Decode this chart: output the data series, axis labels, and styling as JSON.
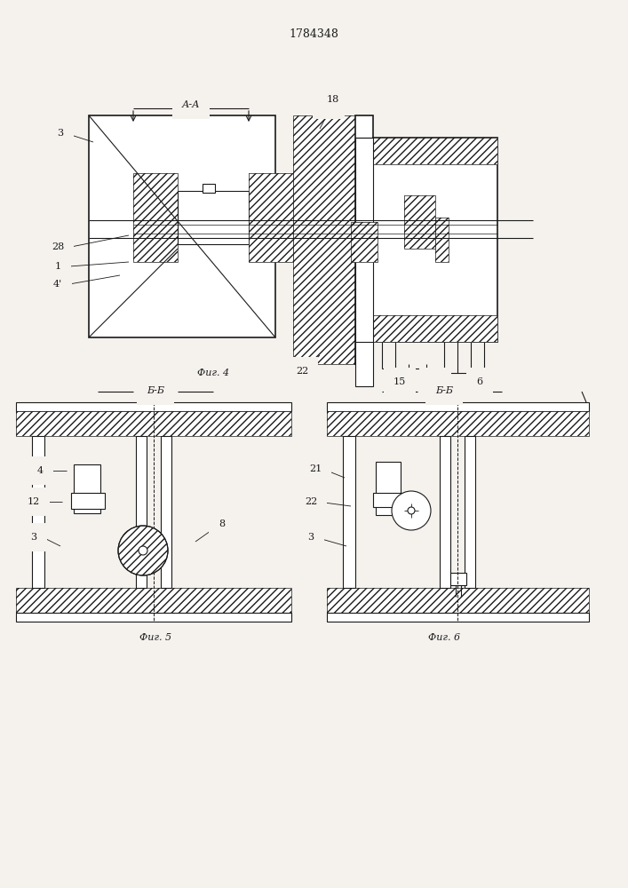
{
  "title": "1784348",
  "bg": "#f5f2ee",
  "lc": "#1a1a1a",
  "fig4_label": "Фиг. 4",
  "fig5_label": "Фиг. 5",
  "fig6_label": "Фиг. 6",
  "sec_aa": "А-А",
  "sec_bb": "Б-Б",
  "lw": 0.8,
  "lw2": 1.2
}
